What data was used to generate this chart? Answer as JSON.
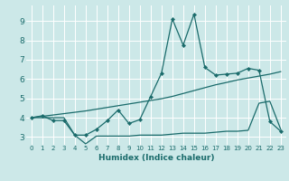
{
  "xlabel": "Humidex (Indice chaleur)",
  "bg_color": "#cce8e8",
  "grid_color": "#ffffff",
  "line_color": "#1a6b6b",
  "xlim": [
    -0.5,
    23.5
  ],
  "ylim": [
    2.6,
    9.8
  ],
  "xticks": [
    0,
    1,
    2,
    3,
    4,
    5,
    6,
    7,
    8,
    9,
    10,
    11,
    12,
    13,
    14,
    15,
    16,
    17,
    18,
    19,
    20,
    21,
    22,
    23
  ],
  "yticks": [
    3,
    4,
    5,
    6,
    7,
    8,
    9
  ],
  "line1_x": [
    0,
    1,
    2,
    3,
    4,
    5,
    6,
    7,
    8,
    9,
    10,
    11,
    12,
    13,
    14,
    15,
    16,
    17,
    18,
    19,
    20,
    21,
    22,
    23
  ],
  "line1_y": [
    4.0,
    4.1,
    3.85,
    3.85,
    3.1,
    3.1,
    3.4,
    3.85,
    4.4,
    3.7,
    3.9,
    5.1,
    6.3,
    9.1,
    7.75,
    9.35,
    6.6,
    6.2,
    6.25,
    6.3,
    6.55,
    6.45,
    3.8,
    3.3
  ],
  "line2_x": [
    0,
    1,
    2,
    3,
    4,
    5,
    6,
    7,
    8,
    9,
    10,
    11,
    12,
    13,
    14,
    15,
    16,
    17,
    18,
    19,
    20,
    21,
    22,
    23
  ],
  "line2_y": [
    4.0,
    4.07,
    4.14,
    4.21,
    4.28,
    4.35,
    4.44,
    4.53,
    4.62,
    4.71,
    4.8,
    4.89,
    4.98,
    5.1,
    5.25,
    5.4,
    5.55,
    5.7,
    5.82,
    5.95,
    6.05,
    6.15,
    6.25,
    6.38
  ],
  "line3_x": [
    0,
    1,
    2,
    3,
    4,
    5,
    6,
    7,
    8,
    9,
    10,
    11,
    12,
    13,
    14,
    15,
    16,
    17,
    18,
    19,
    20,
    21,
    22,
    23
  ],
  "line3_y": [
    4.0,
    4.0,
    4.0,
    4.0,
    3.1,
    2.65,
    3.05,
    3.05,
    3.05,
    3.05,
    3.1,
    3.1,
    3.1,
    3.15,
    3.2,
    3.2,
    3.2,
    3.25,
    3.3,
    3.3,
    3.35,
    4.75,
    4.85,
    3.4
  ]
}
